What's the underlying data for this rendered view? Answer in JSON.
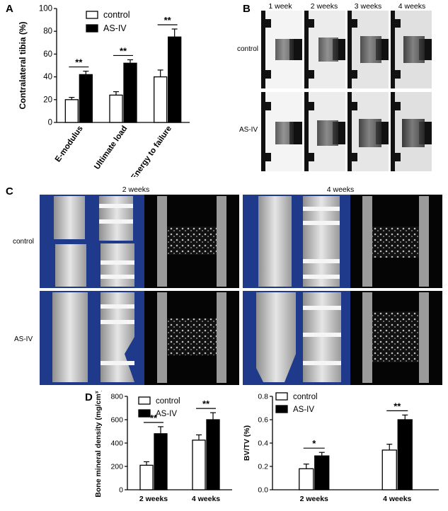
{
  "panels": {
    "a_letter": "A",
    "b_letter": "B",
    "c_letter": "C",
    "d_letter": "D"
  },
  "panel_b": {
    "columns": [
      "1 week",
      "2 weeks",
      "3 weeks",
      "4 weeks"
    ],
    "rows": [
      "control",
      "AS-IV"
    ]
  },
  "panel_c": {
    "columns": [
      "2 weeks",
      "4 weeks"
    ],
    "rows": [
      "control",
      "AS-IV"
    ]
  },
  "chart_data": [
    {
      "type": "bar",
      "id": "A",
      "ylabel": "Contralateral tibia (%)",
      "categories": [
        "E-modulus",
        "Ultimate load",
        "Energy to failure"
      ],
      "series": [
        {
          "name": "control",
          "values": [
            20,
            24,
            40
          ],
          "errors": [
            2,
            3,
            6
          ]
        },
        {
          "name": "AS-IV",
          "values": [
            42,
            52,
            75
          ],
          "errors": [
            3,
            3,
            7
          ]
        }
      ],
      "significance": [
        "**",
        "**",
        "**"
      ],
      "ylim": [
        0,
        100
      ],
      "yticks": [
        0,
        20,
        40,
        60,
        80,
        100
      ],
      "legend": "top-left"
    },
    {
      "type": "bar",
      "id": "D1",
      "ylabel": "Bone mineral density (mg/cm³)",
      "categories": [
        "2 weeks",
        "4 weeks"
      ],
      "series": [
        {
          "name": "control",
          "values": [
            210,
            425
          ],
          "errors": [
            30,
            45
          ]
        },
        {
          "name": "AS-IV",
          "values": [
            480,
            600
          ],
          "errors": [
            60,
            60
          ]
        }
      ],
      "significance": [
        "**",
        "**"
      ],
      "ylim": [
        0,
        800
      ],
      "yticks": [
        0,
        200,
        400,
        600,
        800
      ],
      "legend": "top-left"
    },
    {
      "type": "bar",
      "id": "D2",
      "ylabel": "BV/TV (%)",
      "categories": [
        "2 weeks",
        "4 weeks"
      ],
      "series": [
        {
          "name": "control",
          "values": [
            0.18,
            0.34
          ],
          "errors": [
            0.04,
            0.05
          ]
        },
        {
          "name": "AS-IV",
          "values": [
            0.29,
            0.6
          ],
          "errors": [
            0.03,
            0.04
          ]
        }
      ],
      "significance": [
        "*",
        "**"
      ],
      "ylim": [
        0,
        0.8
      ],
      "yticks": [
        0.0,
        0.2,
        0.4,
        0.6,
        0.8
      ],
      "legend": "top-left"
    }
  ]
}
